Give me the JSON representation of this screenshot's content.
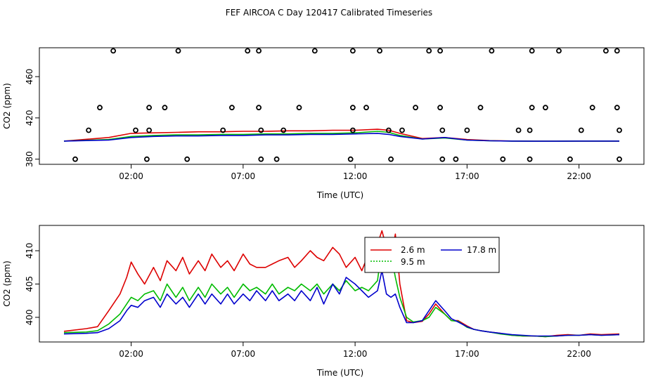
{
  "title": "FEF AIRCOA C  Day 120417  Calibrated Timeseries",
  "colors": {
    "s26": "#dd0000",
    "s95": "#00bb00",
    "s178": "#0000cc",
    "flag": "#000000"
  },
  "chart_data": [
    {
      "type": "scatter+line",
      "xlabel": "Time (UTC)",
      "ylabel": "CO2 (ppm)",
      "xlim": [
        -2.1,
        24.9
      ],
      "ylim": [
        375,
        488
      ],
      "xticks": [
        2,
        7,
        12,
        17,
        22
      ],
      "xtick_labels": [
        "02:00",
        "07:00",
        "12:00",
        "17:00",
        "22:00"
      ],
      "yticks": [
        380,
        420,
        460
      ],
      "ytick_labels": [
        "380",
        "420",
        "460"
      ],
      "flag_points": [
        {
          "x": 1.2,
          "y": 485
        },
        {
          "x": 4.1,
          "y": 485
        },
        {
          "x": 7.2,
          "y": 485
        },
        {
          "x": 7.7,
          "y": 485
        },
        {
          "x": 10.2,
          "y": 485
        },
        {
          "x": 11.9,
          "y": 485
        },
        {
          "x": 13.1,
          "y": 485
        },
        {
          "x": 15.3,
          "y": 485
        },
        {
          "x": 15.8,
          "y": 485
        },
        {
          "x": 18.1,
          "y": 485
        },
        {
          "x": 19.9,
          "y": 485
        },
        {
          "x": 21.1,
          "y": 485
        },
        {
          "x": 23.2,
          "y": 485
        },
        {
          "x": 23.7,
          "y": 485
        },
        {
          "x": 0.6,
          "y": 430
        },
        {
          "x": 2.8,
          "y": 430
        },
        {
          "x": 3.5,
          "y": 430
        },
        {
          "x": 6.5,
          "y": 430
        },
        {
          "x": 7.7,
          "y": 430
        },
        {
          "x": 9.5,
          "y": 430
        },
        {
          "x": 11.9,
          "y": 430
        },
        {
          "x": 12.5,
          "y": 430
        },
        {
          "x": 14.7,
          "y": 430
        },
        {
          "x": 15.8,
          "y": 430
        },
        {
          "x": 17.6,
          "y": 430
        },
        {
          "x": 19.9,
          "y": 430
        },
        {
          "x": 20.5,
          "y": 430
        },
        {
          "x": 22.6,
          "y": 430
        },
        {
          "x": 23.7,
          "y": 430
        },
        {
          "x": 0.1,
          "y": 408
        },
        {
          "x": 2.2,
          "y": 408
        },
        {
          "x": 2.8,
          "y": 408
        },
        {
          "x": 6.1,
          "y": 408
        },
        {
          "x": 7.8,
          "y": 408
        },
        {
          "x": 8.8,
          "y": 408
        },
        {
          "x": 11.9,
          "y": 408
        },
        {
          "x": 13.5,
          "y": 408
        },
        {
          "x": 14.1,
          "y": 408
        },
        {
          "x": 15.9,
          "y": 408
        },
        {
          "x": 17.0,
          "y": 408
        },
        {
          "x": 19.3,
          "y": 408
        },
        {
          "x": 19.8,
          "y": 408
        },
        {
          "x": 22.1,
          "y": 408
        },
        {
          "x": 23.8,
          "y": 408
        },
        {
          "x": -0.5,
          "y": 380
        },
        {
          "x": 2.7,
          "y": 380
        },
        {
          "x": 4.5,
          "y": 380
        },
        {
          "x": 7.8,
          "y": 380
        },
        {
          "x": 8.5,
          "y": 380
        },
        {
          "x": 11.8,
          "y": 380
        },
        {
          "x": 13.6,
          "y": 380
        },
        {
          "x": 15.9,
          "y": 380
        },
        {
          "x": 16.5,
          "y": 380
        },
        {
          "x": 18.6,
          "y": 380
        },
        {
          "x": 19.8,
          "y": 380
        },
        {
          "x": 21.6,
          "y": 380
        },
        {
          "x": 23.8,
          "y": 380
        }
      ],
      "series": [
        {
          "name": "2.6 m",
          "color": "#dd0000",
          "x": [
            -1,
            1,
            2,
            3,
            4,
            5,
            6,
            7,
            8,
            9,
            10,
            11,
            12,
            13,
            13.5,
            14,
            15,
            16,
            17,
            18,
            19,
            20,
            21,
            22,
            23,
            23.8
          ],
          "values": [
            397.5,
            401,
            405,
            405.5,
            406,
            406.5,
            406.5,
            407,
            407,
            407.5,
            407.5,
            408,
            408,
            409,
            408,
            405,
            400,
            401,
            399,
            398,
            397.6,
            397.4,
            397.4,
            397.5,
            397.5,
            397.5
          ]
        },
        {
          "name": "9.5 m",
          "color": "#00bb00",
          "x": [
            -1,
            1,
            2,
            3,
            4,
            5,
            6,
            7,
            8,
            9,
            10,
            11,
            12,
            13,
            13.5,
            14,
            15,
            16,
            17,
            18,
            19,
            20,
            21,
            22,
            23,
            23.8
          ],
          "values": [
            397.5,
            399,
            402,
            403,
            403.5,
            403.5,
            404,
            404,
            404.5,
            404.5,
            405,
            405,
            405.5,
            407,
            406,
            403,
            399.5,
            400.5,
            398.5,
            397.8,
            397.5,
            397.4,
            397.4,
            397.5,
            397.5,
            397.5
          ]
        },
        {
          "name": "17.8 m",
          "color": "#0000cc",
          "x": [
            -1,
            1,
            2,
            3,
            4,
            5,
            6,
            7,
            8,
            9,
            10,
            11,
            12,
            13,
            13.5,
            14,
            15,
            16,
            17,
            18,
            19,
            20,
            21,
            22,
            23,
            23.8
          ],
          "values": [
            397.5,
            398.5,
            401,
            402,
            402.5,
            402.5,
            403,
            403,
            403.5,
            403.5,
            404,
            404,
            404.5,
            405,
            404,
            402,
            399.5,
            401,
            398.5,
            397.8,
            397.5,
            397.4,
            397.4,
            397.5,
            397.5,
            397.5
          ]
        }
      ]
    },
    {
      "type": "line",
      "xlabel": "Time (UTC)",
      "ylabel": "CO2 (ppm)",
      "xlim": [
        -2.1,
        24.9
      ],
      "ylim": [
        396.3,
        413.8
      ],
      "xticks": [
        2,
        7,
        12,
        17,
        22
      ],
      "xtick_labels": [
        "02:00",
        "07:00",
        "12:00",
        "17:00",
        "22:00"
      ],
      "yticks": [
        400,
        405,
        410
      ],
      "ytick_labels": [
        "400",
        "405",
        "410"
      ],
      "legend": {
        "position": "top-right-of-center",
        "entries": [
          "2.6 m",
          "9.5 m",
          "17.8 m"
        ]
      },
      "series": [
        {
          "name": "2.6 m",
          "color": "#dd0000",
          "x": [
            -1,
            0,
            0.5,
            1,
            1.5,
            1.8,
            2,
            2.3,
            2.6,
            3,
            3.3,
            3.6,
            4,
            4.3,
            4.6,
            5,
            5.3,
            5.6,
            6,
            6.3,
            6.6,
            7,
            7.3,
            7.6,
            8,
            8.3,
            8.6,
            9,
            9.3,
            9.6,
            10,
            10.3,
            10.6,
            11,
            11.3,
            11.6,
            12,
            12.3,
            12.6,
            13,
            13.2,
            13.4,
            13.6,
            13.8,
            14,
            14.3,
            14.6,
            15,
            15.3,
            15.6,
            16,
            16.3,
            16.6,
            17,
            17.3,
            17.6,
            18,
            18.5,
            19,
            19.5,
            20,
            20.5,
            21,
            21.5,
            22,
            22.5,
            23,
            23.8
          ],
          "values": [
            397.9,
            398.3,
            398.6,
            401,
            403.5,
            406,
            408.3,
            406.5,
            405,
            407.5,
            405.5,
            408.5,
            407,
            409,
            406.5,
            408.5,
            407,
            409.5,
            407.5,
            408.5,
            407,
            409.5,
            408,
            407.5,
            407.5,
            408,
            408.5,
            409,
            407.5,
            408.5,
            410,
            409,
            408.5,
            410.5,
            409.5,
            407.5,
            409,
            407,
            409.5,
            411,
            413,
            410.5,
            409,
            412.5,
            405,
            399.5,
            399.2,
            399.4,
            400.5,
            402,
            400.5,
            399.5,
            399.5,
            398.7,
            398.2,
            398,
            397.8,
            397.6,
            397.3,
            397.2,
            397.2,
            397.1,
            397.3,
            397.4,
            397.3,
            397.5,
            397.4,
            397.5
          ]
        },
        {
          "name": "9.5 m",
          "color": "#00bb00",
          "x": [
            -1,
            0,
            0.5,
            1,
            1.5,
            1.8,
            2,
            2.3,
            2.6,
            3,
            3.3,
            3.6,
            4,
            4.3,
            4.6,
            5,
            5.3,
            5.6,
            6,
            6.3,
            6.6,
            7,
            7.3,
            7.6,
            8,
            8.3,
            8.6,
            9,
            9.3,
            9.6,
            10,
            10.3,
            10.6,
            11,
            11.3,
            11.6,
            12,
            12.3,
            12.6,
            13,
            13.2,
            13.4,
            13.6,
            13.8,
            14,
            14.3,
            14.6,
            15,
            15.3,
            15.6,
            16,
            16.3,
            16.6,
            17,
            17.3,
            17.6,
            18,
            18.5,
            19,
            19.5,
            20,
            20.5,
            21,
            21.5,
            22,
            22.5,
            23,
            23.8
          ],
          "values": [
            397.7,
            397.8,
            398,
            399,
            400.5,
            402,
            403,
            402.5,
            403.5,
            404,
            402.5,
            405,
            403,
            404.5,
            402.5,
            404.5,
            403,
            405,
            403.5,
            404.5,
            403,
            405,
            404,
            404.5,
            403.5,
            405,
            403.5,
            404.5,
            404,
            405,
            404,
            405,
            403.5,
            405,
            404,
            405.5,
            404,
            404.5,
            404,
            405.5,
            410.5,
            409,
            409.5,
            406,
            403,
            400,
            399.3,
            399.5,
            400,
            401.5,
            400.5,
            399.5,
            399.4,
            398.5,
            398.2,
            398,
            397.8,
            397.5,
            397.3,
            397.2,
            397.2,
            397.1,
            397.2,
            397.3,
            397.3,
            397.4,
            397.3,
            397.4
          ]
        },
        {
          "name": "17.8 m",
          "color": "#0000cc",
          "x": [
            -1,
            0,
            0.5,
            1,
            1.5,
            1.8,
            2,
            2.3,
            2.6,
            3,
            3.3,
            3.6,
            4,
            4.3,
            4.6,
            5,
            5.3,
            5.6,
            6,
            6.3,
            6.6,
            7,
            7.3,
            7.6,
            8,
            8.3,
            8.6,
            9,
            9.3,
            9.6,
            10,
            10.3,
            10.6,
            11,
            11.3,
            11.6,
            12,
            12.3,
            12.6,
            13,
            13.2,
            13.4,
            13.6,
            13.8,
            14,
            14.3,
            14.6,
            15,
            15.3,
            15.6,
            16,
            16.3,
            16.6,
            17,
            17.3,
            17.6,
            18,
            18.5,
            19,
            19.5,
            20,
            20.5,
            21,
            21.5,
            22,
            22.5,
            23,
            23.8
          ],
          "values": [
            397.5,
            397.6,
            397.7,
            398.3,
            399.5,
            401,
            401.8,
            401.5,
            402.5,
            403,
            401.5,
            403.5,
            402,
            403,
            401.5,
            403.5,
            402,
            403.5,
            402,
            403.5,
            402,
            403.5,
            402.5,
            404,
            402.5,
            404,
            402.5,
            403.5,
            402.5,
            404,
            402.5,
            404.5,
            402,
            405,
            403.5,
            406,
            405,
            404,
            403,
            404,
            407,
            403.5,
            403,
            403.5,
            401.5,
            399.2,
            399.2,
            399.5,
            401,
            402.5,
            401,
            399.8,
            399.3,
            398.6,
            398.2,
            398,
            397.8,
            397.6,
            397.4,
            397.3,
            397.2,
            397.2,
            397.2,
            397.3,
            397.3,
            397.4,
            397.3,
            397.4
          ]
        }
      ]
    }
  ]
}
